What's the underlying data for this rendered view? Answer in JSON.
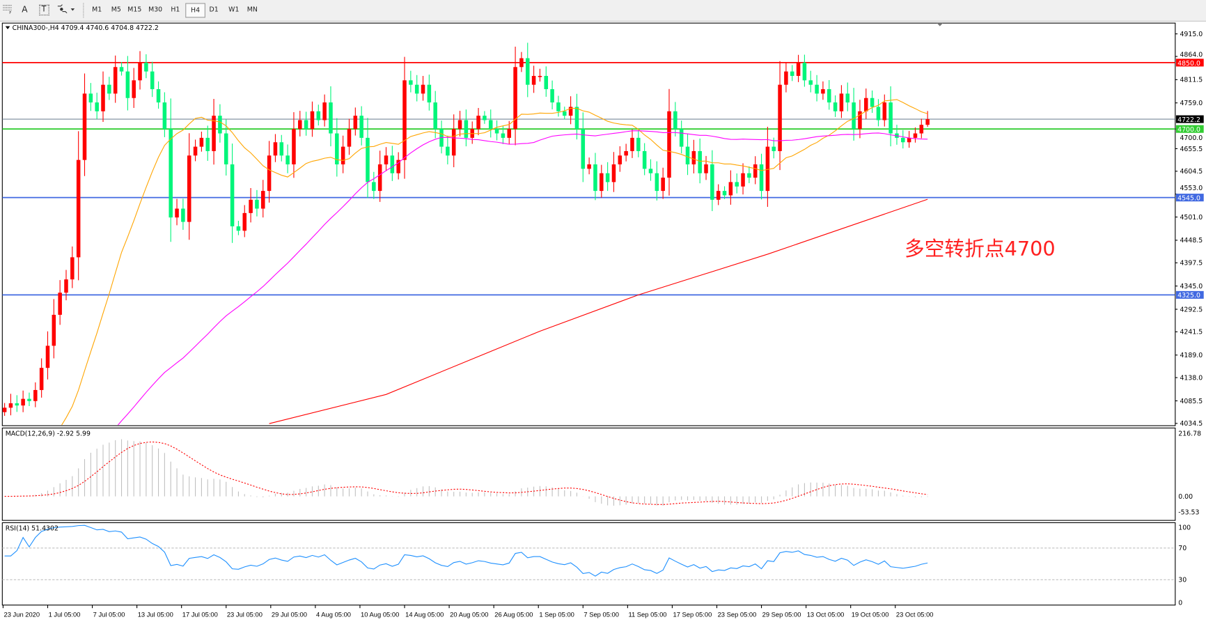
{
  "toolbar": {
    "icons": [
      "grid-icon",
      "text-icon",
      "text-label-icon",
      "arrows-icon"
    ],
    "text_icon_label": "A",
    "text_label_icon_label": "T",
    "timeframes": [
      "M1",
      "M5",
      "M15",
      "M30",
      "H1",
      "H4",
      "D1",
      "W1",
      "MN"
    ],
    "active_timeframe": "H4"
  },
  "chart_data": {
    "type": "candlestick",
    "title": "CHINA300-,H4  4709.4 4740.6 4704.8 4722.2",
    "ohlc_last": {
      "open": 4709.4,
      "high": 4740.6,
      "low": 4704.8,
      "close": 4722.2
    },
    "closes": [
      4070,
      4080,
      4075,
      4090,
      4085,
      4110,
      4160,
      4210,
      4280,
      4330,
      4360,
      4410,
      4630,
      4780,
      4760,
      4740,
      4800,
      4780,
      4840,
      4830,
      4770,
      4810,
      4850,
      4830,
      4790,
      4760,
      4700,
      4500,
      4520,
      4490,
      4640,
      4660,
      4680,
      4650,
      4730,
      4690,
      4620,
      4480,
      4470,
      4510,
      4540,
      4520,
      4560,
      4640,
      4670,
      4640,
      4620,
      4700,
      4720,
      4700,
      4740,
      4720,
      4760,
      4690,
      4620,
      4660,
      4700,
      4730,
      4680,
      4580,
      4560,
      4620,
      4640,
      4600,
      4630,
      4810,
      4800,
      4780,
      4800,
      4760,
      4700,
      4660,
      4640,
      4700,
      4720,
      4680,
      4700,
      4730,
      4720,
      4700,
      4690,
      4680,
      4700,
      4840,
      4860,
      4800,
      4820,
      4820,
      4790,
      4760,
      4740,
      4730,
      4750,
      4700,
      4610,
      4620,
      4560,
      4600,
      4580,
      4620,
      4640,
      4650,
      4680,
      4650,
      4610,
      4600,
      4560,
      4590,
      4740,
      4700,
      4660,
      4620,
      4650,
      4600,
      4620,
      4540,
      4560,
      4550,
      4580,
      4570,
      4600,
      4590,
      4620,
      4560,
      4660,
      4650,
      4800,
      4830,
      4820,
      4850,
      4810,
      4800,
      4780,
      4790,
      4760,
      4740,
      4780,
      4760,
      4700,
      4740,
      4770,
      4750,
      4720,
      4760,
      4690,
      4680,
      4670,
      4680,
      4690,
      4709.4,
      4722.2
    ],
    "ma_long_points": [
      [
        43,
        4034
      ],
      [
        62,
        4100
      ],
      [
        87,
        4243
      ],
      [
        103,
        4325
      ],
      [
        124,
        4417
      ],
      [
        150,
        4541
      ]
    ],
    "price_axis": {
      "range": [
        4034.5,
        4915.0
      ],
      "ticks": [
        "4915.0",
        "4864.0",
        "4811.5",
        "4759.0",
        "4722.2",
        "4700.0",
        "4655.5",
        "4604.5",
        "4553.0",
        "4501.0",
        "4448.5",
        "4397.5",
        "4345.0",
        "4292.5",
        "4241.5",
        "4189.0",
        "4138.0",
        "4085.5",
        "4034.5"
      ]
    },
    "levels": [
      {
        "price": 4850.0,
        "label": "4850.0",
        "color": "#ff0000"
      },
      {
        "price": 4700.0,
        "label": "4700.0",
        "color": "#32cd32"
      },
      {
        "price": 4545.0,
        "label": "4545.0",
        "color": "#4169e1"
      },
      {
        "price": 4325.0,
        "label": "4325.0",
        "color": "#4169e1"
      }
    ],
    "bid": {
      "price": 4722.2,
      "label": "4722.2",
      "color": "#778899"
    },
    "colors": {
      "up": "#ff0000",
      "down": "#00f57a",
      "ma_fast": "#ffa500",
      "ma_mid": "#ff00ff",
      "ma_long": "#ff0000",
      "macd_hist": "#c0c0c0",
      "macd_signal": "#ff0000",
      "rsi": "#1e90ff"
    },
    "annotation": {
      "text": "多空转折点4700",
      "color": "#ff2020"
    },
    "macd": {
      "label": "MACD(12,26,9) -2.92 5.99",
      "range": [
        -53.53,
        216.78
      ],
      "ticks": [
        "216.78",
        "0.00",
        "-53.53"
      ]
    },
    "rsi": {
      "label": "RSI(14) 51.4302",
      "range": [
        0,
        100
      ],
      "ticks": [
        "100",
        "70",
        "30",
        "0"
      ],
      "levels": [
        70,
        30
      ]
    },
    "x_labels": [
      "23 Jun 2020",
      "1 Jul 05:00",
      "7 Jul 05:00",
      "13 Jul 05:00",
      "17 Jul 05:00",
      "23 Jul 05:00",
      "29 Jul 05:00",
      "4 Aug 05:00",
      "10 Aug 05:00",
      "14 Aug 05:00",
      "20 Aug 05:00",
      "26 Aug 05:00",
      "1 Sep 05:00",
      "7 Sep 05:00",
      "11 Sep 05:00",
      "17 Sep 05:00",
      "23 Sep 05:00",
      "29 Sep 05:00",
      "13 Oct 05:00",
      "19 Oct 05:00",
      "23 Oct 05:00"
    ]
  }
}
